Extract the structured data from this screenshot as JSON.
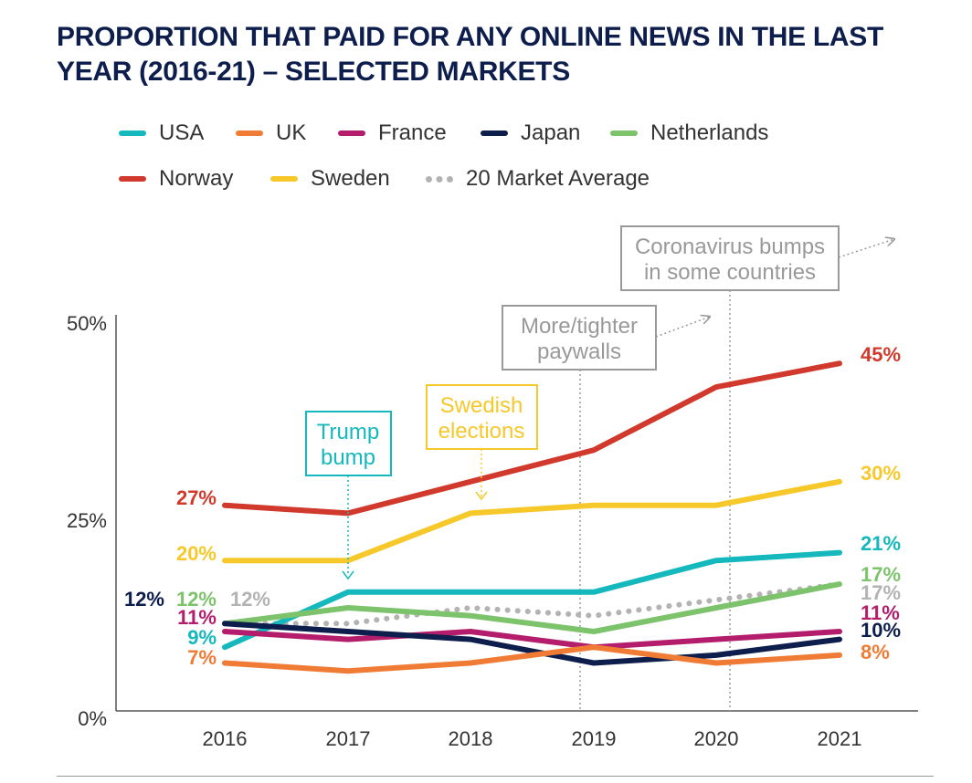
{
  "title": {
    "line1": "PROPORTION THAT PAID FOR ANY ONLINE NEWS IN THE LAST",
    "line2": "YEAR (2016-21) – SELECTED MARKETS"
  },
  "legend": [
    {
      "label": "USA",
      "color": "#14b8bd",
      "style": "solid"
    },
    {
      "label": "UK",
      "color": "#f07b35",
      "style": "solid"
    },
    {
      "label": "France",
      "color": "#b31d6b",
      "style": "solid"
    },
    {
      "label": "Japan",
      "color": "#0d1e4c",
      "style": "solid"
    },
    {
      "label": "Netherlands",
      "color": "#7cc36b",
      "style": "solid"
    },
    {
      "label": "Norway",
      "color": "#d0392b",
      "style": "solid"
    },
    {
      "label": "Sweden",
      "color": "#f7c82a",
      "style": "solid"
    },
    {
      "label": "20 Market Average",
      "color": "#b3b3b3",
      "style": "dotted"
    }
  ],
  "annotations": {
    "trump": {
      "line1": "Trump",
      "line2": "bump",
      "color": "#14b8bd"
    },
    "swedish": {
      "line1": "Swedish",
      "line2": "elections",
      "color": "#f7c82a"
    },
    "paywalls": {
      "line1": "More/tighter",
      "line2": "paywalls",
      "color": "#999999"
    },
    "corona": {
      "line1": "Coronavirus bumps",
      "line2": "in some countries",
      "color": "#999999"
    }
  },
  "chart_data": {
    "type": "line",
    "title": "PROPORTION THAT PAID FOR ANY ONLINE NEWS IN THE LAST YEAR (2016-21) – SELECTED MARKETS",
    "x": [
      "2016",
      "2017",
      "2018",
      "2019",
      "2020",
      "2021"
    ],
    "ylim": [
      0,
      50
    ],
    "yticks": [
      "0%",
      "25%",
      "50%"
    ],
    "grid": false,
    "legend_position": "top",
    "series": [
      {
        "name": "Norway",
        "color": "#d0392b",
        "values": [
          27,
          26,
          30,
          34,
          42,
          45
        ],
        "start_label": "27%",
        "end_label": "45%"
      },
      {
        "name": "Sweden",
        "color": "#f7c82a",
        "values": [
          20,
          20,
          26,
          27,
          27,
          30
        ],
        "start_label": "20%",
        "end_label": "30%"
      },
      {
        "name": "USA",
        "color": "#14b8bd",
        "values": [
          9,
          16,
          16,
          16,
          20,
          21
        ],
        "start_label": "9%",
        "end_label": "21%"
      },
      {
        "name": "Netherlands",
        "color": "#7cc36b",
        "values": [
          12,
          14,
          13,
          11,
          14,
          17
        ],
        "start_label": "12%",
        "end_label": "17%"
      },
      {
        "name": "20 Market Average",
        "color": "#b3b3b3",
        "dotted": true,
        "values": [
          12,
          12,
          14,
          13,
          15,
          17
        ],
        "start_label": "12%",
        "end_label": "17%"
      },
      {
        "name": "France",
        "color": "#b31d6b",
        "values": [
          11,
          10,
          11,
          9,
          10,
          11
        ],
        "start_label": "11%",
        "end_label": "11%"
      },
      {
        "name": "Japan",
        "color": "#0d1e4c",
        "values": [
          12,
          11,
          10,
          7,
          8,
          10
        ],
        "start_label": "12%",
        "end_label": "10%"
      },
      {
        "name": "UK",
        "color": "#f07b35",
        "values": [
          7,
          6,
          7,
          9,
          7,
          8
        ],
        "start_label": "7%",
        "end_label": "8%"
      }
    ]
  }
}
